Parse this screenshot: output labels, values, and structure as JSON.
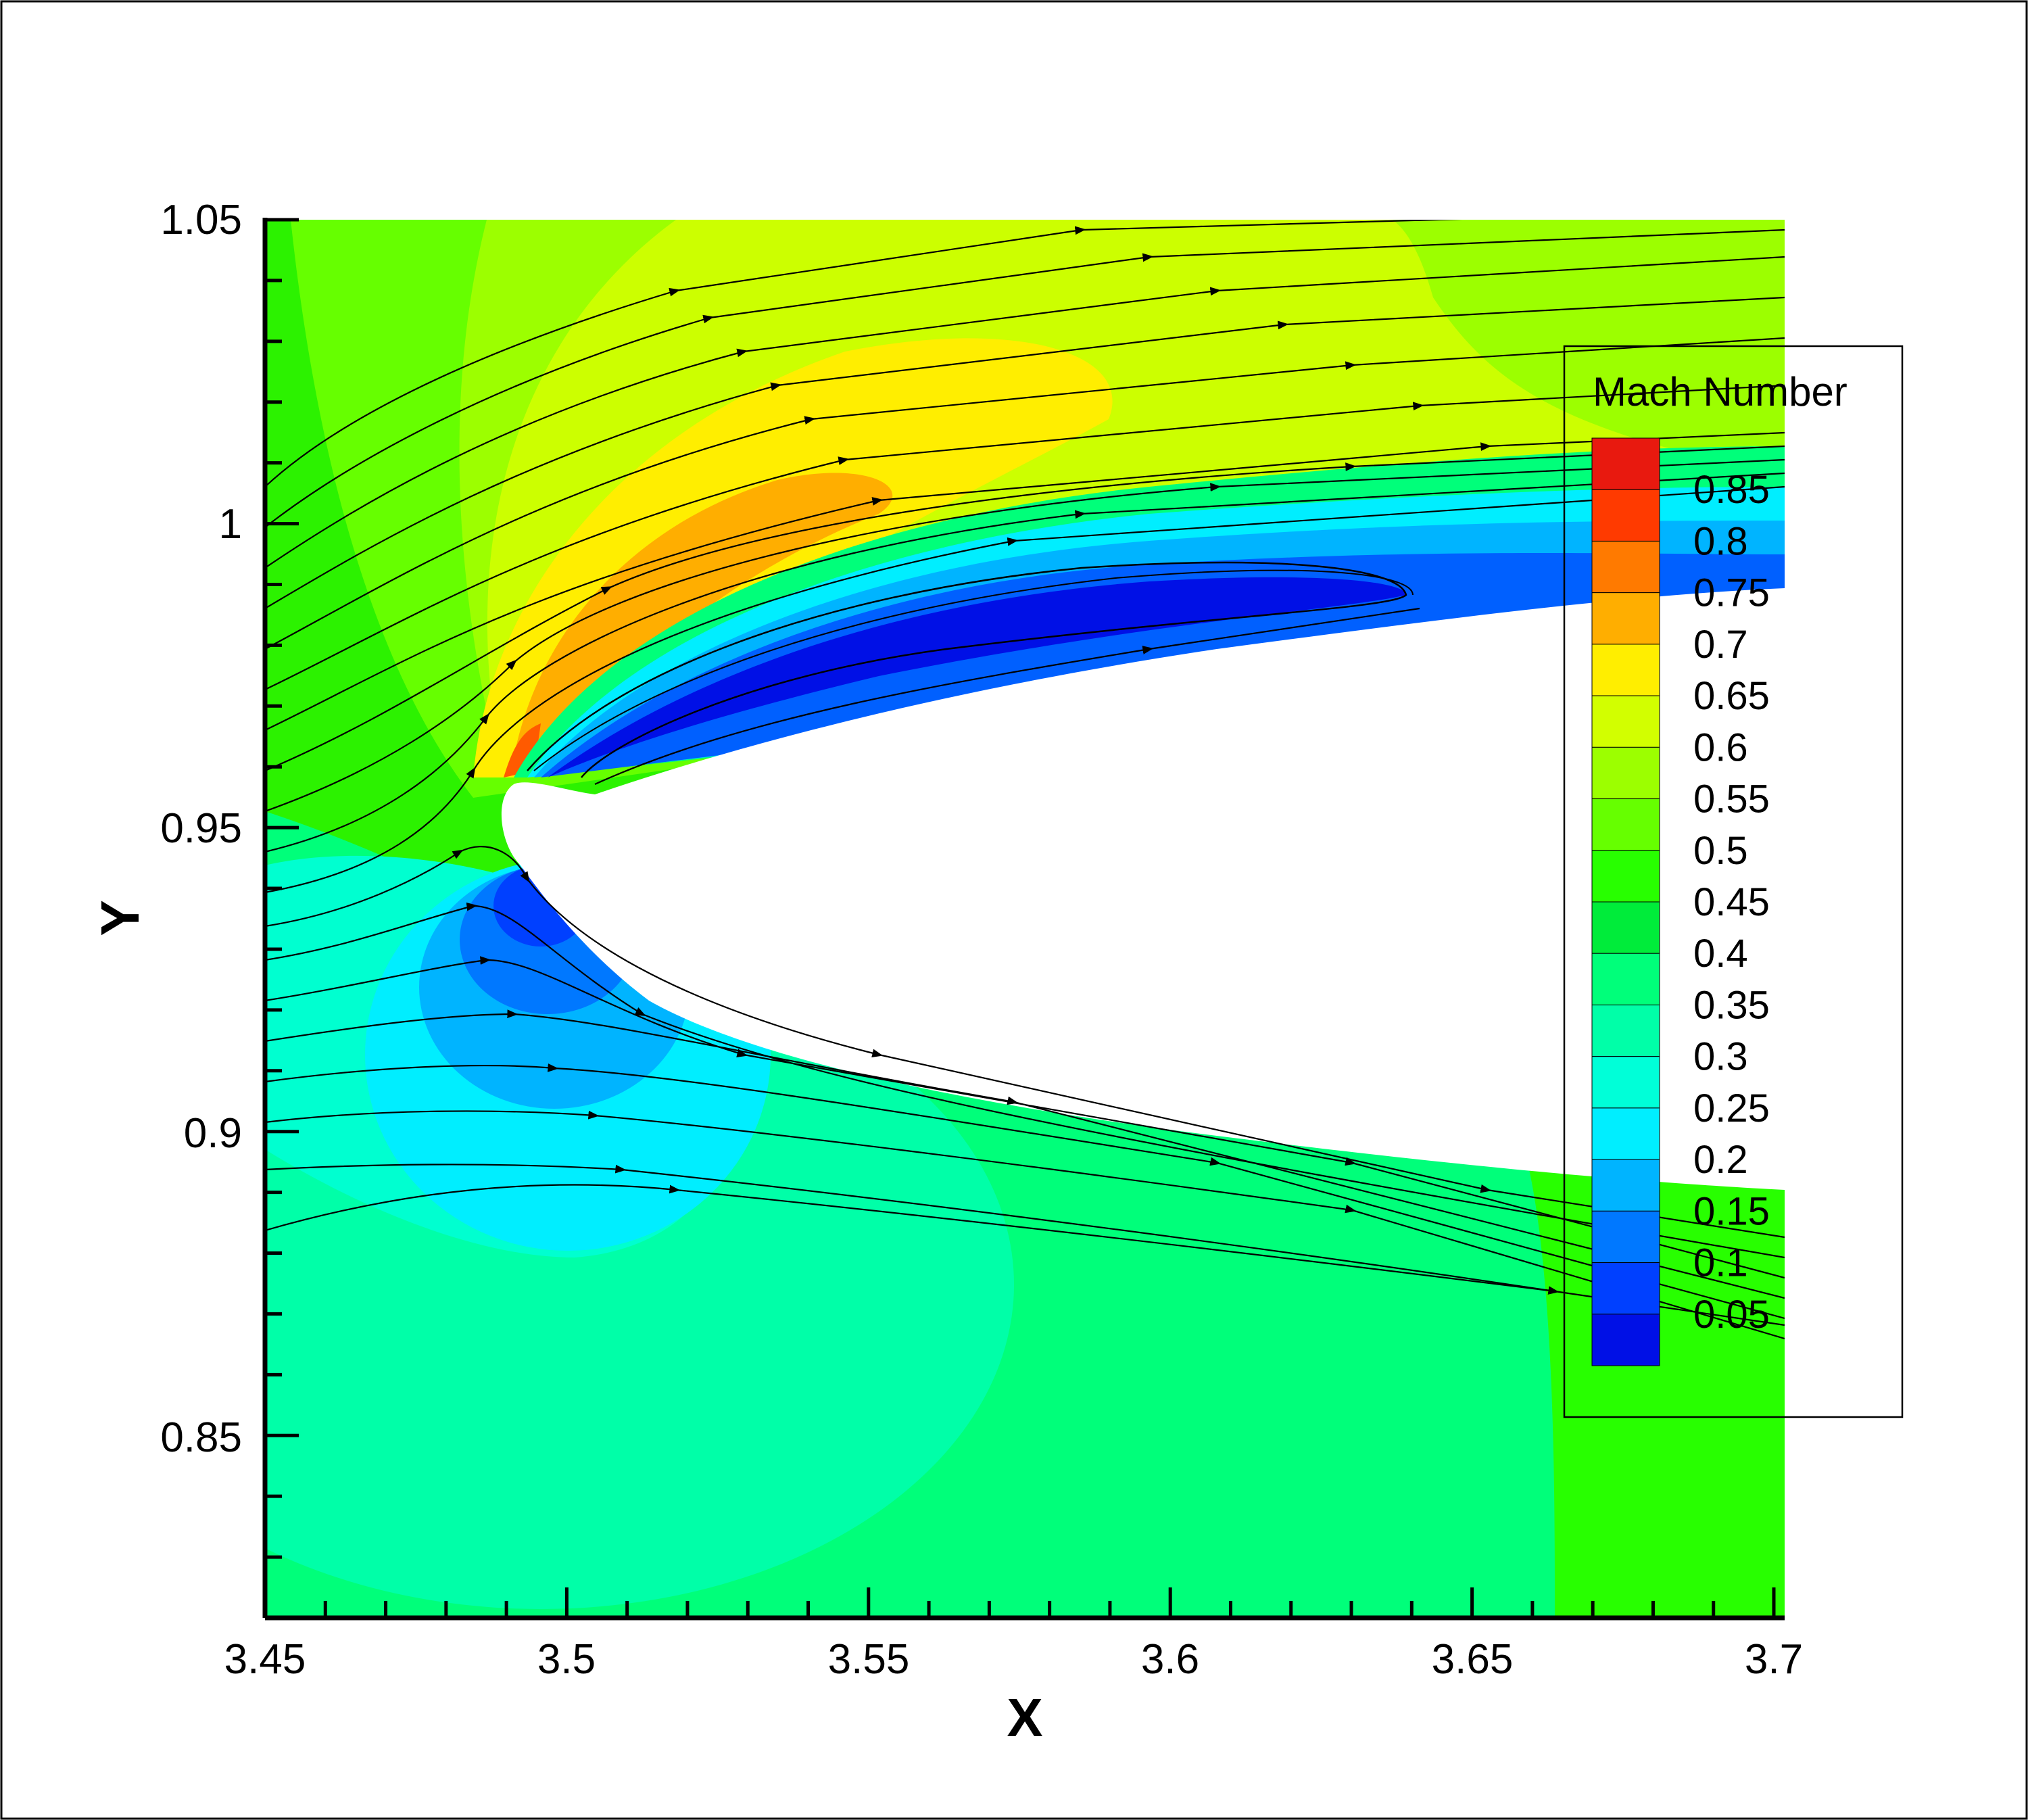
{
  "chart_data": {
    "type": "contour",
    "xlabel": "X",
    "ylabel": "Y",
    "xlim": [
      3.45,
      3.7
    ],
    "ylim": [
      0.82,
      1.05
    ],
    "x_ticks": [
      "3.45",
      "3.5",
      "3.55",
      "3.6",
      "3.65",
      "3.7"
    ],
    "x_tick_values": [
      3.45,
      3.5,
      3.55,
      3.6,
      3.65,
      3.7
    ],
    "y_ticks": [
      "0.85",
      "0.9",
      "0.95",
      "1",
      "1.05"
    ],
    "y_tick_values": [
      0.85,
      0.9,
      0.95,
      1.0,
      1.05
    ],
    "legend": {
      "title": "Mach Number",
      "levels": [
        "0.85",
        "0.8",
        "0.75",
        "0.7",
        "0.65",
        "0.6",
        "0.55",
        "0.5",
        "0.45",
        "0.4",
        "0.35",
        "0.3",
        "0.25",
        "0.2",
        "0.15",
        "0.1",
        "0.05"
      ],
      "colors": [
        "#e8190f",
        "#ff3a00",
        "#ff7a00",
        "#ffae00",
        "#ffee00",
        "#d2ff00",
        "#9cff00",
        "#66ff00",
        "#28ff00",
        "#00ec3a",
        "#00ff7a",
        "#00ffa8",
        "#00ffd8",
        "#00eeff",
        "#00b4ff",
        "#0078ff",
        "#0040ff",
        "#0010e6"
      ]
    },
    "field": "Mach number contours with streamlines around an airfoil leading edge"
  }
}
